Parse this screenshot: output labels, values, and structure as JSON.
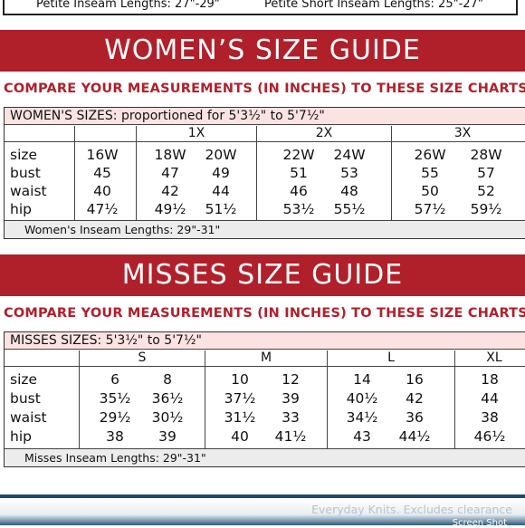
{
  "top": {
    "petite_inseam": "Petite Inseam Lengths: 27\"-29\"",
    "petite_short_inseam": "Petite Short Inseam Lengths: 25\"-27\""
  },
  "womens": {
    "banner": "WOMEN’S SIZE GUIDE",
    "compare": "COMPARE YOUR MEASUREMENTS (IN INCHES) TO THESE SIZE CHARTS",
    "table_title": "WOMEN'S SIZES: proportioned for 5'3½\" to 5'7½\"",
    "groups": [
      "1X",
      "2X",
      "3X"
    ],
    "row_labels": [
      "size",
      "bust",
      "waist",
      "hip"
    ],
    "sizes": [
      "16W",
      "18W",
      "20W",
      "22W",
      "24W",
      "26W",
      "28W"
    ],
    "bust": [
      "45",
      "47",
      "49",
      "51",
      "53",
      "55",
      "57"
    ],
    "waist": [
      "40",
      "42",
      "44",
      "46",
      "48",
      "50",
      "52"
    ],
    "hip": [
      "47½",
      "49½",
      "51½",
      "53½",
      "55½",
      "57½",
      "59½"
    ],
    "inseam": "Women's Inseam Lengths: 29\"-31\""
  },
  "misses": {
    "banner": "MISSES SIZE GUIDE",
    "compare": "COMPARE YOUR MEASUREMENTS (IN INCHES) TO THESE SIZE CHARTS",
    "table_title": "MISSES SIZES: 5'3½\" to 5'7½\"",
    "groups": [
      "S",
      "M",
      "L",
      "XL"
    ],
    "row_labels": [
      "size",
      "bust",
      "waist",
      "hip"
    ],
    "sizes": [
      "6",
      "8",
      "10",
      "12",
      "14",
      "16",
      "18"
    ],
    "bust": [
      "35½",
      "36½",
      "37½",
      "39",
      "40½",
      "42",
      "44"
    ],
    "waist": [
      "29½",
      "30½",
      "31½",
      "33",
      "34½",
      "36",
      "38"
    ],
    "hip": [
      "38",
      "39",
      "40",
      "41½",
      "43",
      "44½",
      "46½"
    ],
    "inseam": "Misses Inseam Lengths: 29\"-31\""
  },
  "bottom": {
    "caption": "Everyday Knits. Excludes clearance",
    "shot_label": "Screen Shot"
  }
}
